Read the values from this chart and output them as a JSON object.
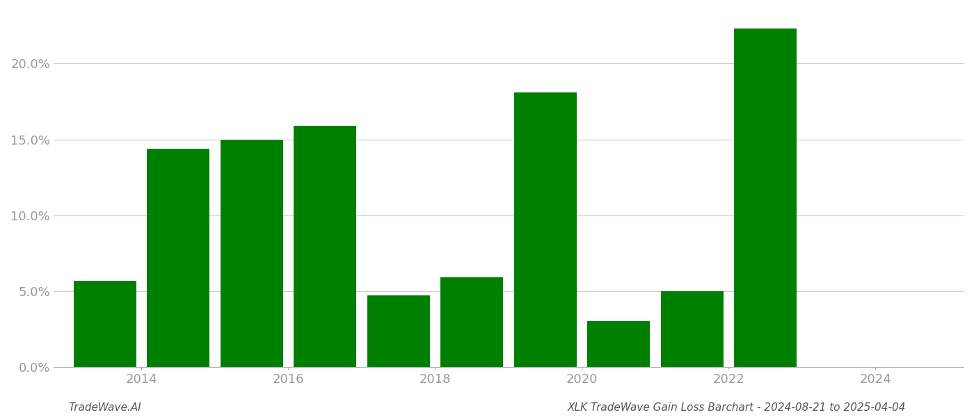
{
  "years": [
    2013,
    2014,
    2015,
    2016,
    2017,
    2018,
    2019,
    2020,
    2021,
    2022,
    2023
  ],
  "values": [
    5.7,
    14.4,
    15.0,
    15.9,
    4.7,
    5.9,
    18.1,
    3.0,
    5.0,
    22.3,
    0.0
  ],
  "bar_color": "#008000",
  "footer_left": "TradeWave.AI",
  "footer_right": "XLK TradeWave Gain Loss Barchart - 2024-08-21 to 2025-04-04",
  "ylim": [
    0,
    23.5
  ],
  "yticks": [
    0.0,
    5.0,
    10.0,
    15.0,
    20.0
  ],
  "ytick_labels": [
    "0.0%",
    "5.0%",
    "10.0%",
    "15.0%",
    "20.0%"
  ],
  "xtick_positions": [
    2013.5,
    2015.5,
    2017.5,
    2019.5,
    2021.5,
    2023.5
  ],
  "xtick_labels": [
    "2014",
    "2016",
    "2018",
    "2020",
    "2022",
    "2024"
  ],
  "xlim": [
    2012.3,
    2024.7
  ],
  "background_color": "#ffffff",
  "grid_color": "#cccccc",
  "bar_width": 0.85,
  "tick_fontsize": 13,
  "footer_fontsize": 11
}
